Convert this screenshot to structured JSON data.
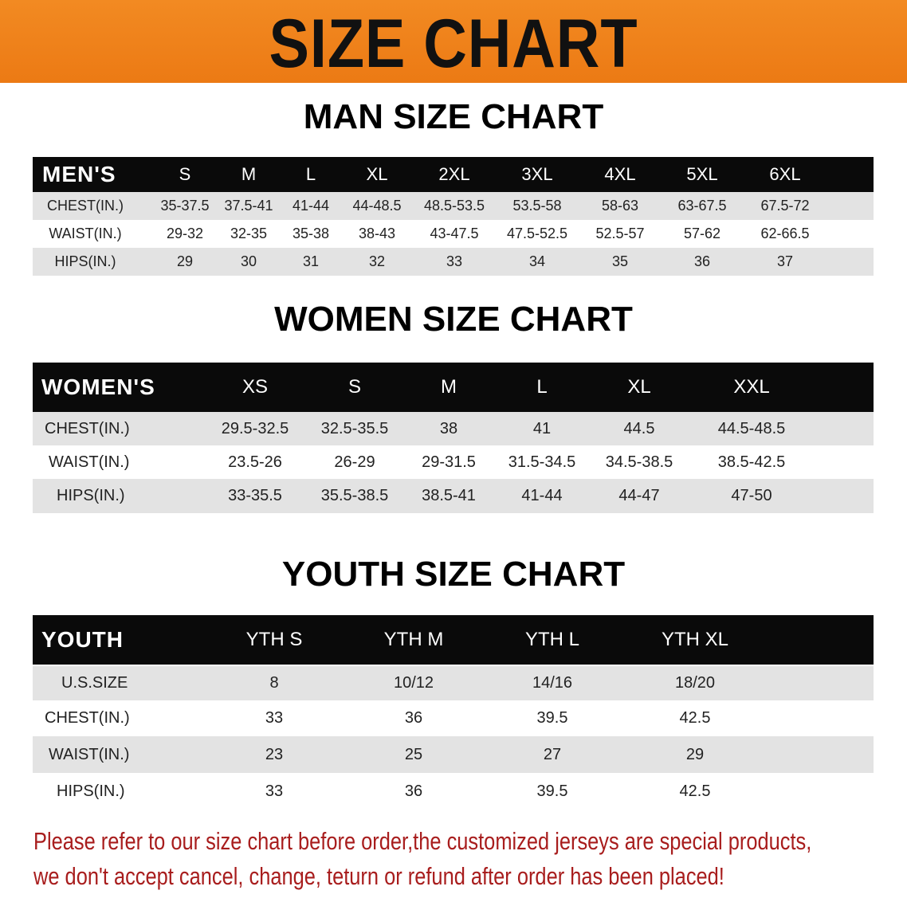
{
  "banner": {
    "title": "SIZE CHART",
    "color": "#ef7f18"
  },
  "men": {
    "title": "MAN SIZE CHART",
    "header": [
      "MEN'S",
      "S",
      "M",
      "L",
      "XL",
      "2XL",
      "3XL",
      "4XL",
      "5XL",
      "6XL"
    ],
    "rows": [
      [
        "CHEST(IN.)",
        "35-37.5",
        "37.5-41",
        "41-44",
        "44-48.5",
        "48.5-53.5",
        "53.5-58",
        "58-63",
        "63-67.5",
        "67.5-72"
      ],
      [
        "WAIST(IN.)",
        "29-32",
        "32-35",
        "35-38",
        "38-43",
        "43-47.5",
        "47.5-52.5",
        "52.5-57",
        "57-62",
        "62-66.5"
      ],
      [
        "HIPS(IN.)",
        "29",
        "30",
        "31",
        "32",
        "33",
        "34",
        "35",
        "36",
        "37"
      ]
    ]
  },
  "women": {
    "title": "WOMEN SIZE CHART",
    "header": [
      "WOMEN'S",
      "XS",
      "S",
      "M",
      "L",
      "XL",
      "XXL"
    ],
    "rows": [
      [
        "CHEST(IN.)",
        "29.5-32.5",
        "32.5-35.5",
        "38",
        "41",
        "44.5",
        "44.5-48.5"
      ],
      [
        "WAIST(IN.)",
        "23.5-26",
        "26-29",
        "29-31.5",
        "31.5-34.5",
        "34.5-38.5",
        "38.5-42.5"
      ],
      [
        "HIPS(IN.)",
        "33-35.5",
        "35.5-38.5",
        "38.5-41",
        "41-44",
        "44-47",
        "47-50"
      ]
    ]
  },
  "youth": {
    "title": "YOUTH SIZE CHART",
    "header": [
      "YOUTH",
      "YTH S",
      "YTH M",
      "YTH L",
      "YTH XL"
    ],
    "rows": [
      [
        "U.S.SIZE",
        "8",
        "10/12",
        "14/16",
        "18/20"
      ],
      [
        "CHEST(IN.)",
        "33",
        "36",
        "39.5",
        "42.5"
      ],
      [
        "WAIST(IN.)",
        "23",
        "25",
        "27",
        "29"
      ],
      [
        "HIPS(IN.)",
        "33",
        "36",
        "39.5",
        "42.5"
      ]
    ]
  },
  "note": {
    "line1": "Please refer to our size chart before order,the customized jerseys are special products,",
    "line2": "we don't accept cancel, change, teturn or refund after order has been placed!",
    "color": "#a81d1d"
  }
}
